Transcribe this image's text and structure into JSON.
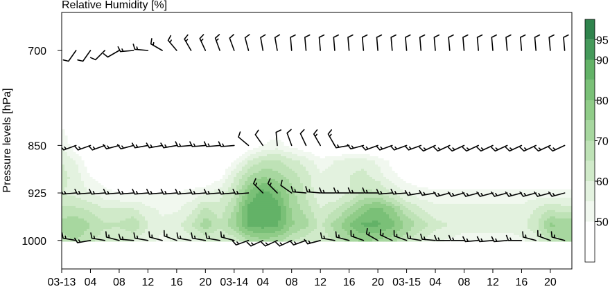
{
  "chart_data": {
    "type": "heatmap",
    "title": "Relative Humidity [%]",
    "ylabel": "Pressure levels [hPa]",
    "xlabel": "",
    "y_ticks": [
      {
        "value": 700,
        "label": "700"
      },
      {
        "value": 850,
        "label": "850"
      },
      {
        "value": 925,
        "label": "925"
      },
      {
        "value": 1000,
        "label": "1000"
      }
    ],
    "x_ticks": [
      {
        "hour": 0,
        "label": "03-13"
      },
      {
        "hour": 4,
        "label": "04"
      },
      {
        "hour": 8,
        "label": "08"
      },
      {
        "hour": 12,
        "label": "12"
      },
      {
        "hour": 16,
        "label": "16"
      },
      {
        "hour": 20,
        "label": "20"
      },
      {
        "hour": 24,
        "label": "03-14"
      },
      {
        "hour": 28,
        "label": "04"
      },
      {
        "hour": 32,
        "label": "08"
      },
      {
        "hour": 36,
        "label": "12"
      },
      {
        "hour": 40,
        "label": "16"
      },
      {
        "hour": 44,
        "label": "20"
      },
      {
        "hour": 48,
        "label": "03-15"
      },
      {
        "hour": 52,
        "label": "04"
      },
      {
        "hour": 56,
        "label": "08"
      },
      {
        "hour": 60,
        "label": "12"
      },
      {
        "hour": 64,
        "label": "16"
      },
      {
        "hour": 68,
        "label": "20"
      }
    ],
    "xlim_hours": [
      0,
      71
    ],
    "ylim_hpa": [
      640,
      1045
    ],
    "colorbar": {
      "levels": [
        40,
        45,
        50,
        55,
        60,
        65,
        70,
        75,
        80,
        85,
        90,
        95,
        100
      ],
      "labels": [
        50,
        60,
        70,
        80,
        90,
        95
      ],
      "colors": [
        "#ffffff",
        "#ffffff",
        "#f1f8ef",
        "#e3f2df",
        "#d0eac9",
        "#bee2b6",
        "#a7d79f",
        "#90cc88",
        "#7ac077",
        "#63b267",
        "#45995a",
        "#2f834c"
      ]
    },
    "humidity_grid": {
      "x_hours": [
        0,
        2,
        4,
        6,
        8,
        10,
        12,
        14,
        16,
        18,
        20,
        22,
        24,
        26,
        28,
        30,
        32,
        34,
        36,
        38,
        40,
        42,
        44,
        46,
        48,
        50,
        52,
        54,
        56,
        58,
        60,
        62,
        64,
        66,
        68,
        70
      ],
      "y_hpa": [
        700,
        850,
        875,
        900,
        925,
        950,
        975,
        1000
      ],
      "values": [
        [
          30,
          30,
          30,
          30,
          30,
          30,
          30,
          30,
          30,
          30,
          30,
          30,
          30,
          30,
          30,
          30,
          30,
          30,
          30,
          30,
          30,
          30,
          30,
          30,
          30,
          30,
          30,
          30,
          30,
          30,
          30,
          30,
          30,
          30,
          30,
          30
        ],
        [
          55,
          45,
          40,
          38,
          38,
          38,
          38,
          38,
          38,
          38,
          38,
          38,
          40,
          45,
          50,
          52,
          48,
          45,
          42,
          40,
          40,
          40,
          38,
          36,
          36,
          36,
          36,
          36,
          36,
          36,
          36,
          36,
          36,
          36,
          36,
          36
        ],
        [
          60,
          55,
          45,
          42,
          40,
          40,
          40,
          40,
          40,
          40,
          40,
          42,
          50,
          60,
          66,
          66,
          62,
          58,
          52,
          55,
          58,
          58,
          54,
          48,
          44,
          42,
          42,
          42,
          40,
          40,
          40,
          40,
          40,
          40,
          40,
          40
        ],
        [
          62,
          58,
          50,
          46,
          44,
          44,
          44,
          44,
          44,
          44,
          44,
          48,
          60,
          70,
          75,
          73,
          68,
          62,
          56,
          58,
          60,
          62,
          58,
          52,
          48,
          46,
          44,
          44,
          44,
          44,
          44,
          44,
          44,
          44,
          44,
          44
        ],
        [
          60,
          58,
          55,
          52,
          50,
          50,
          50,
          50,
          50,
          52,
          54,
          58,
          64,
          80,
          88,
          82,
          72,
          64,
          56,
          56,
          60,
          66,
          66,
          60,
          54,
          52,
          52,
          52,
          52,
          52,
          52,
          52,
          52,
          52,
          52,
          52
        ],
        [
          66,
          66,
          64,
          60,
          60,
          60,
          56,
          54,
          54,
          58,
          66,
          62,
          70,
          87,
          90,
          88,
          74,
          68,
          60,
          64,
          70,
          78,
          82,
          76,
          66,
          60,
          56,
          56,
          56,
          56,
          56,
          56,
          56,
          60,
          64,
          62
        ],
        [
          72,
          75,
          70,
          66,
          66,
          70,
          60,
          56,
          58,
          64,
          74,
          66,
          74,
          87,
          88,
          86,
          76,
          72,
          64,
          72,
          80,
          86,
          86,
          82,
          74,
          68,
          62,
          60,
          58,
          58,
          58,
          58,
          58,
          64,
          76,
          74
        ],
        [
          68,
          70,
          66,
          62,
          60,
          60,
          56,
          54,
          56,
          58,
          60,
          60,
          62,
          70,
          74,
          72,
          66,
          62,
          60,
          66,
          72,
          76,
          74,
          72,
          66,
          60,
          56,
          54,
          52,
          52,
          52,
          52,
          54,
          58,
          68,
          70
        ]
      ]
    },
    "wind_barbs": {
      "x_hours": [
        0,
        2,
        4,
        6,
        8,
        10,
        12,
        14,
        16,
        18,
        20,
        22,
        24,
        26,
        28,
        30,
        32,
        34,
        36,
        38,
        40,
        42,
        44,
        46,
        48,
        50,
        52,
        54,
        56,
        58,
        60,
        62,
        64,
        66,
        68,
        70
      ],
      "levels": [
        {
          "hpa": 700,
          "dir_deg": [
            230,
            215,
            215,
            225,
            240,
            265,
            275,
            300,
            320,
            330,
            335,
            340,
            340,
            345,
            350,
            350,
            355,
            355,
            355,
            355,
            355,
            355,
            355,
            355,
            355,
            355,
            355,
            355,
            355,
            355,
            355,
            355,
            355,
            355,
            355,
            355
          ],
          "speed_kt": [
            10,
            10,
            10,
            10,
            10,
            15,
            15,
            15,
            15,
            15,
            15,
            15,
            10,
            10,
            10,
            10,
            10,
            10,
            10,
            10,
            10,
            10,
            10,
            10,
            10,
            10,
            10,
            10,
            10,
            10,
            10,
            10,
            10,
            10,
            10,
            10
          ]
        },
        {
          "hpa": 850,
          "dir_deg": [
            245,
            250,
            250,
            250,
            255,
            255,
            260,
            260,
            260,
            265,
            265,
            265,
            265,
            310,
            325,
            355,
            340,
            335,
            330,
            330,
            260,
            255,
            250,
            250,
            250,
            250,
            245,
            245,
            245,
            245,
            245,
            245,
            245,
            245,
            245,
            245
          ],
          "speed_kt": [
            10,
            15,
            15,
            15,
            15,
            15,
            15,
            15,
            15,
            15,
            15,
            15,
            15,
            10,
            10,
            10,
            10,
            10,
            15,
            15,
            15,
            15,
            15,
            15,
            15,
            15,
            15,
            15,
            15,
            15,
            15,
            15,
            15,
            15,
            15,
            15
          ]
        },
        {
          "hpa": 925,
          "dir_deg": [
            265,
            265,
            265,
            265,
            265,
            265,
            265,
            265,
            265,
            265,
            265,
            265,
            265,
            265,
            315,
            315,
            305,
            275,
            275,
            270,
            270,
            270,
            270,
            265,
            265,
            260,
            260,
            255,
            255,
            255,
            255,
            255,
            255,
            255,
            255,
            255
          ],
          "speed_kt": [
            10,
            15,
            15,
            15,
            15,
            15,
            15,
            15,
            15,
            15,
            15,
            15,
            15,
            15,
            15,
            15,
            10,
            15,
            15,
            15,
            15,
            15,
            15,
            15,
            15,
            15,
            15,
            15,
            15,
            15,
            15,
            15,
            15,
            15,
            15,
            15
          ]
        },
        {
          "hpa": 1000,
          "dir_deg": [
            250,
            280,
            260,
            280,
            285,
            275,
            280,
            285,
            290,
            280,
            280,
            280,
            285,
            250,
            245,
            245,
            245,
            250,
            255,
            280,
            285,
            290,
            300,
            295,
            290,
            280,
            275,
            270,
            270,
            265,
            265,
            265,
            270,
            285,
            290,
            285
          ],
          "speed_kt": [
            10,
            15,
            15,
            15,
            15,
            15,
            15,
            15,
            15,
            15,
            15,
            15,
            15,
            15,
            15,
            15,
            15,
            15,
            15,
            15,
            15,
            15,
            15,
            15,
            15,
            15,
            15,
            15,
            15,
            15,
            15,
            15,
            15,
            15,
            15,
            15
          ]
        }
      ]
    }
  }
}
